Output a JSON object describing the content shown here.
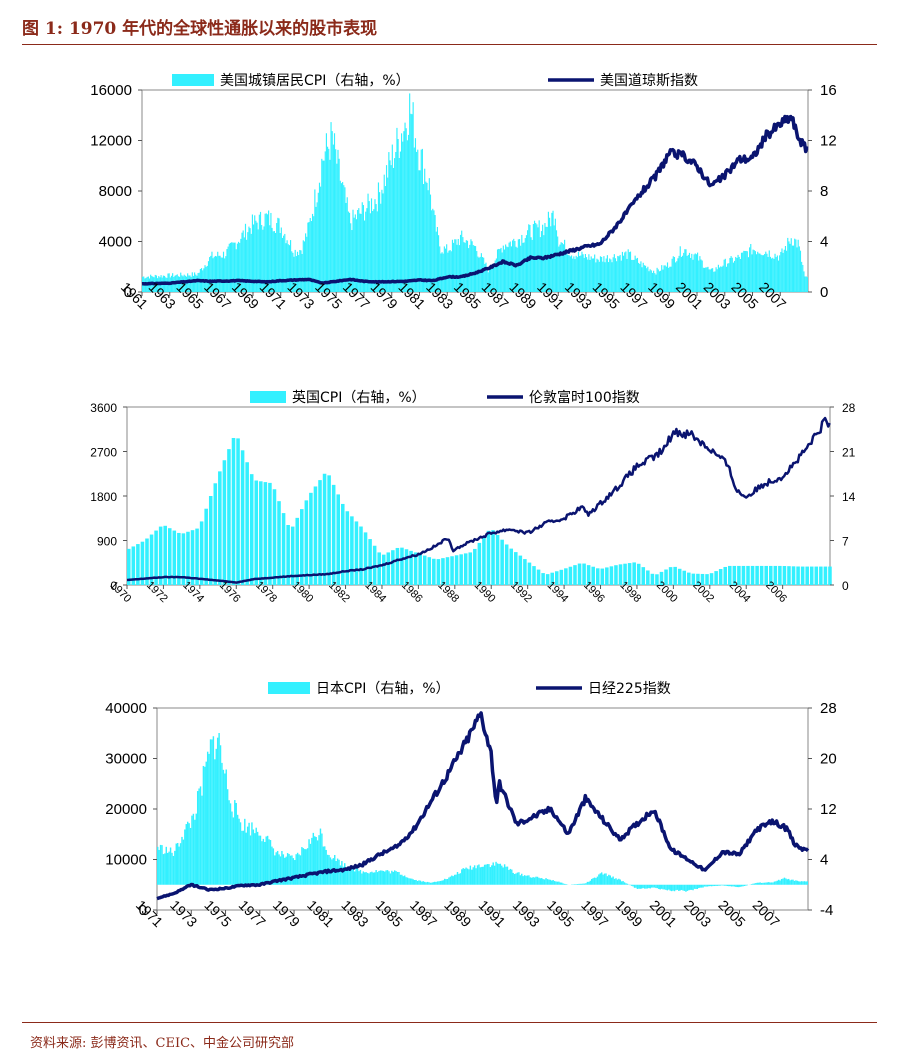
{
  "figure": {
    "title": "图 1:  1970 年代的全球性通胀以来的股市表现",
    "source": "资料来源:  彭博资讯、CEIC、中金公司研究部"
  },
  "colors": {
    "bar": "#33f0ff",
    "line": "#0a1470",
    "title": "#8b2a1a"
  },
  "chart_data": [
    {
      "type": "bar+line",
      "title": "",
      "legend": {
        "bar": "美国城镇居民CPI（右轴，%）",
        "line": "美国道琼斯指数"
      },
      "left_axis": {
        "min": 0,
        "max": 16000,
        "ticks": [
          0,
          4000,
          8000,
          12000,
          16000
        ]
      },
      "right_axis": {
        "min": 0,
        "max": 16,
        "ticks": [
          0,
          4,
          8,
          12,
          16
        ]
      },
      "x_range": [
        1961,
        2009
      ],
      "x_ticks": [
        "1961",
        "1963",
        "1965",
        "1967",
        "1969",
        "1971",
        "1973",
        "1975",
        "1977",
        "1979",
        "1981",
        "1983",
        "1985",
        "1987",
        "1989",
        "1991",
        "1993",
        "1995",
        "1997",
        "1999",
        "2001",
        "2003",
        "2005",
        "2007"
      ],
      "cpi_points": [
        [
          1961,
          1.2
        ],
        [
          1963,
          1.3
        ],
        [
          1965,
          1.4
        ],
        [
          1966,
          2.8
        ],
        [
          1967,
          3.0
        ],
        [
          1968,
          4.2
        ],
        [
          1969,
          5.4
        ],
        [
          1970,
          5.9
        ],
        [
          1971,
          5.2
        ],
        [
          1971.5,
          4.2
        ],
        [
          1972,
          3.2
        ],
        [
          1972.5,
          3.4
        ],
        [
          1973,
          5.0
        ],
        [
          1973.6,
          8.0
        ],
        [
          1974,
          10.5
        ],
        [
          1974.7,
          12.2
        ],
        [
          1975,
          10.5
        ],
        [
          1975.5,
          8.0
        ],
        [
          1976,
          5.5
        ],
        [
          1976.5,
          6.0
        ],
        [
          1977,
          6.5
        ],
        [
          1978,
          7.5
        ],
        [
          1979,
          10.5
        ],
        [
          1980,
          13.5
        ],
        [
          1980.3,
          14.7
        ],
        [
          1981,
          11.0
        ],
        [
          1981.7,
          8.5
        ],
        [
          1982,
          6.0
        ],
        [
          1982.5,
          3.5
        ],
        [
          1983,
          3.3
        ],
        [
          1984,
          4.3
        ],
        [
          1985,
          3.6
        ],
        [
          1986,
          1.7
        ],
        [
          1987,
          3.7
        ],
        [
          1988,
          4.1
        ],
        [
          1989,
          4.8
        ],
        [
          1990,
          5.2
        ],
        [
          1990.8,
          6.3
        ],
        [
          1991,
          4.2
        ],
        [
          1992,
          3.0
        ],
        [
          1993,
          2.8
        ],
        [
          1994,
          2.6
        ],
        [
          1995,
          2.8
        ],
        [
          1996,
          3.0
        ],
        [
          1997,
          2.2
        ],
        [
          1998,
          1.6
        ],
        [
          1999,
          2.2
        ],
        [
          2000,
          3.4
        ],
        [
          2001,
          2.8
        ],
        [
          2002,
          1.6
        ],
        [
          2003,
          2.3
        ],
        [
          2004,
          2.7
        ],
        [
          2005,
          3.4
        ],
        [
          2006,
          3.2
        ],
        [
          2007,
          2.8
        ],
        [
          2007.8,
          4.3
        ],
        [
          2008.3,
          3.8
        ],
        [
          2008.8,
          1.1
        ]
      ],
      "index_points": [
        [
          1961,
          650
        ],
        [
          1963,
          700
        ],
        [
          1965,
          900
        ],
        [
          1966,
          850
        ],
        [
          1968,
          900
        ],
        [
          1970,
          800
        ],
        [
          1971,
          900
        ],
        [
          1973,
          1000
        ],
        [
          1974,
          700
        ],
        [
          1975,
          850
        ],
        [
          1976,
          1000
        ],
        [
          1977,
          850
        ],
        [
          1978,
          800
        ],
        [
          1980,
          850
        ],
        [
          1981,
          950
        ],
        [
          1982,
          900
        ],
        [
          1983,
          1200
        ],
        [
          1984,
          1200
        ],
        [
          1985,
          1500
        ],
        [
          1986,
          1900
        ],
        [
          1987,
          2400
        ],
        [
          1988,
          2100
        ],
        [
          1989,
          2700
        ],
        [
          1990,
          2700
        ],
        [
          1991,
          3000
        ],
        [
          1992,
          3300
        ],
        [
          1993,
          3600
        ],
        [
          1994,
          3800
        ],
        [
          1995,
          5000
        ],
        [
          1996,
          6400
        ],
        [
          1997,
          7900
        ],
        [
          1998,
          9100
        ],
        [
          1999,
          11000
        ],
        [
          2000,
          10800
        ],
        [
          2001,
          10000
        ],
        [
          2002,
          8400
        ],
        [
          2003,
          9200
        ],
        [
          2004,
          10500
        ],
        [
          2005,
          10600
        ],
        [
          2006,
          12400
        ],
        [
          2007,
          13300
        ],
        [
          2007.8,
          13900
        ],
        [
          2008.2,
          12500
        ],
        [
          2008.8,
          11400
        ]
      ]
    },
    {
      "type": "bar+line",
      "title": "",
      "legend": {
        "bar": "英国CPI（右轴，%）",
        "line": "伦敦富时100指数"
      },
      "left_axis": {
        "min": 0,
        "max": 3600,
        "ticks": [
          0,
          900,
          1800,
          2700,
          3600
        ]
      },
      "right_axis": {
        "min": 0,
        "max": 28,
        "ticks": [
          0,
          7,
          14,
          21,
          28
        ]
      },
      "x_range": [
        1970,
        2008.6
      ],
      "x_ticks": [
        "1970",
        "1972",
        "1974",
        "1976",
        "1978",
        "1980",
        "1982",
        "1984",
        "1986",
        "1988",
        "1990",
        "1992",
        "1994",
        "1996",
        "1998",
        "2000",
        "2002",
        "2004",
        "2006"
      ],
      "cpi_points": [
        [
          1970,
          5.5
        ],
        [
          1971,
          7.0
        ],
        [
          1972,
          9.5
        ],
        [
          1973,
          8.0
        ],
        [
          1974,
          9.0
        ],
        [
          1975,
          17.0
        ],
        [
          1976,
          24.0
        ],
        [
          1977,
          16.5
        ],
        [
          1978,
          16.0
        ],
        [
          1979,
          8.5
        ],
        [
          1980,
          14.0
        ],
        [
          1981,
          18.0
        ],
        [
          1982,
          12.0
        ],
        [
          1983,
          8.8
        ],
        [
          1984,
          4.6
        ],
        [
          1985,
          6.0
        ],
        [
          1986,
          5.0
        ],
        [
          1987,
          4.0
        ],
        [
          1988,
          4.6
        ],
        [
          1989,
          5.2
        ],
        [
          1990,
          9.0
        ],
        [
          1991,
          6.0
        ],
        [
          1992,
          3.8
        ],
        [
          1993,
          1.6
        ],
        [
          1994,
          2.5
        ],
        [
          1995,
          3.5
        ],
        [
          1996,
          2.5
        ],
        [
          1997,
          3.2
        ],
        [
          1998,
          3.6
        ],
        [
          1999,
          1.5
        ],
        [
          2000,
          3.0
        ],
        [
          2001,
          1.8
        ],
        [
          2002,
          1.7
        ],
        [
          2003,
          3.0
        ],
        [
          2004,
          3.0
        ],
        [
          2005,
          3.0
        ],
        [
          2006,
          3.0
        ],
        [
          2007,
          2.9
        ],
        [
          2008,
          2.9
        ]
      ],
      "index_points": [
        [
          1970,
          100
        ],
        [
          1972,
          160
        ],
        [
          1973,
          160
        ],
        [
          1975,
          90
        ],
        [
          1976,
          50
        ],
        [
          1977,
          120
        ],
        [
          1978,
          150
        ],
        [
          1979,
          180
        ],
        [
          1980,
          200
        ],
        [
          1981,
          220
        ],
        [
          1982,
          280
        ],
        [
          1983,
          320
        ],
        [
          1984,
          400
        ],
        [
          1985,
          520
        ],
        [
          1986,
          620
        ],
        [
          1987,
          800
        ],
        [
          1987.6,
          950
        ],
        [
          1987.9,
          700
        ],
        [
          1988,
          730
        ],
        [
          1989,
          900
        ],
        [
          1990,
          1050
        ],
        [
          1991,
          1130
        ],
        [
          1992,
          1050
        ],
        [
          1993,
          1250
        ],
        [
          1994,
          1350
        ],
        [
          1995,
          1580
        ],
        [
          1995.3,
          1420
        ],
        [
          1996,
          1650
        ],
        [
          1997,
          2000
        ],
        [
          1998,
          2400
        ],
        [
          1999,
          2600
        ],
        [
          1999.5,
          2750
        ],
        [
          2000,
          3100
        ],
        [
          2001,
          3050
        ],
        [
          2002,
          2750
        ],
        [
          2002.8,
          2500
        ],
        [
          2003,
          2400
        ],
        [
          2003.5,
          1900
        ],
        [
          2004,
          1780
        ],
        [
          2005,
          2050
        ],
        [
          2006,
          2200
        ],
        [
          2007,
          2600
        ],
        [
          2007.8,
          3000
        ],
        [
          2008.3,
          3300
        ],
        [
          2008.6,
          3250
        ]
      ]
    },
    {
      "type": "bar+line",
      "title": "",
      "legend": {
        "bar": "日本CPI（右轴，%）",
        "line": "日经225指数"
      },
      "left_axis": {
        "min": 0,
        "max": 40000,
        "ticks": [
          0,
          10000,
          20000,
          30000,
          40000
        ]
      },
      "right_axis": {
        "min": -4,
        "max": 28,
        "ticks": [
          -4,
          4,
          12,
          20,
          28
        ]
      },
      "x_range": [
        1971,
        2009
      ],
      "x_ticks": [
        "1971",
        "1973",
        "1975",
        "1977",
        "1979",
        "1981",
        "1983",
        "1985",
        "1987",
        "1989",
        "1991",
        "1993",
        "1995",
        "1997",
        "1999",
        "2001",
        "2003",
        "2005",
        "2007"
      ],
      "cpi_points": [
        [
          1971,
          6.0
        ],
        [
          1972,
          5.0
        ],
        [
          1972.5,
          8.0
        ],
        [
          1973,
          10.0
        ],
        [
          1973.5,
          14.0
        ],
        [
          1974,
          20.0
        ],
        [
          1974.5,
          24.0
        ],
        [
          1975,
          17.0
        ],
        [
          1975.5,
          12.0
        ],
        [
          1976,
          9.5
        ],
        [
          1977,
          8.5
        ],
        [
          1978,
          5.0
        ],
        [
          1979,
          4.0
        ],
        [
          1980,
          7.0
        ],
        [
          1980.5,
          8.5
        ],
        [
          1981,
          5.0
        ],
        [
          1982,
          3.0
        ],
        [
          1983,
          2.0
        ],
        [
          1984,
          2.2
        ],
        [
          1985,
          2.0
        ],
        [
          1986,
          0.8
        ],
        [
          1987,
          0.3
        ],
        [
          1988,
          1.0
        ],
        [
          1989,
          2.5
        ],
        [
          1990,
          3.2
        ],
        [
          1991,
          3.3
        ],
        [
          1992,
          1.8
        ],
        [
          1993,
          1.2
        ],
        [
          1994,
          0.8
        ],
        [
          1995,
          0.0
        ],
        [
          1996,
          0.2
        ],
        [
          1997,
          1.8
        ],
        [
          1998,
          0.8
        ],
        [
          1999,
          -0.6
        ],
        [
          2000,
          -0.5
        ],
        [
          2001,
          -0.9
        ],
        [
          2002,
          -1.0
        ],
        [
          2003,
          -0.3
        ],
        [
          2004,
          -0.1
        ],
        [
          2005,
          -0.4
        ],
        [
          2006,
          0.3
        ],
        [
          2007,
          0.4
        ],
        [
          2007.6,
          1.0
        ],
        [
          2008.5,
          0.5
        ]
      ],
      "index_points": [
        [
          1971,
          2300
        ],
        [
          1972,
          3300
        ],
        [
          1973,
          5000
        ],
        [
          1974,
          4000
        ],
        [
          1975,
          4300
        ],
        [
          1976,
          4900
        ],
        [
          1977,
          5000
        ],
        [
          1978,
          5800
        ],
        [
          1979,
          6400
        ],
        [
          1980,
          7100
        ],
        [
          1981,
          7700
        ],
        [
          1982,
          8000
        ],
        [
          1983,
          9000
        ],
        [
          1984,
          11000
        ],
        [
          1985,
          12500
        ],
        [
          1986,
          16000
        ],
        [
          1987,
          21500
        ],
        [
          1988,
          27000
        ],
        [
          1989,
          33000
        ],
        [
          1989.9,
          38900
        ],
        [
          1990.5,
          31000
        ],
        [
          1990.8,
          21000
        ],
        [
          1991,
          25000
        ],
        [
          1992,
          17000
        ],
        [
          1993,
          18500
        ],
        [
          1994,
          20000
        ],
        [
          1995,
          15000
        ],
        [
          1996,
          22000
        ],
        [
          1997,
          18000
        ],
        [
          1998,
          14000
        ],
        [
          1999,
          17000
        ],
        [
          2000,
          20000
        ],
        [
          2001,
          12000
        ],
        [
          2002,
          10000
        ],
        [
          2003,
          7800
        ],
        [
          2004,
          11500
        ],
        [
          2005,
          11000
        ],
        [
          2006,
          16000
        ],
        [
          2007,
          17500
        ],
        [
          2007.8,
          16000
        ],
        [
          2008.2,
          13000
        ],
        [
          2008.7,
          12000
        ]
      ]
    }
  ]
}
